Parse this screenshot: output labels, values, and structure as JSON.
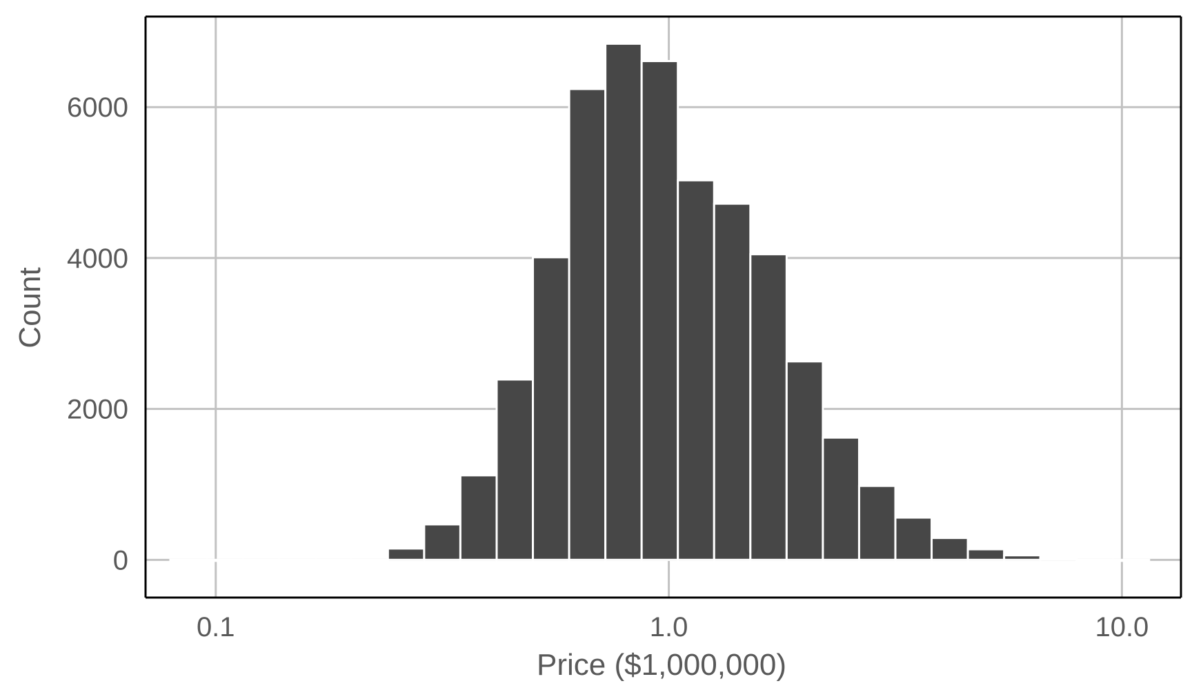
{
  "chart_data": {
    "type": "bar",
    "xlabel": "Price ($1,000,000)",
    "ylabel": "Count",
    "xscale": "log10",
    "xlim": [
      0.07,
      13.5
    ],
    "ylim": [
      -500,
      7200
    ],
    "xticks": [
      0.1,
      1.0,
      10.0
    ],
    "xtick_labels": [
      "0.1",
      "1.0",
      "10.0"
    ],
    "yticks": [
      0,
      2000,
      4000,
      6000
    ],
    "ytick_labels": [
      "0",
      "2000",
      "4000",
      "6000"
    ],
    "grid": true,
    "legend": "none",
    "bar_color": "#474747",
    "bar_edge_color": "#ffffff",
    "bins": [
      {
        "x0": 0.0794,
        "x1": 0.0955,
        "count": 0
      },
      {
        "x0": 0.0955,
        "x1": 0.1148,
        "count": 0
      },
      {
        "x0": 0.1148,
        "x1": 0.138,
        "count": 0
      },
      {
        "x0": 0.138,
        "x1": 0.166,
        "count": 0
      },
      {
        "x0": 0.166,
        "x1": 0.1995,
        "count": 0
      },
      {
        "x0": 0.1995,
        "x1": 0.2399,
        "count": 0
      },
      {
        "x0": 0.2399,
        "x1": 0.2884,
        "count": 150
      },
      {
        "x0": 0.2884,
        "x1": 0.3467,
        "count": 470
      },
      {
        "x0": 0.3467,
        "x1": 0.4169,
        "count": 1120
      },
      {
        "x0": 0.4169,
        "x1": 0.5012,
        "count": 2390
      },
      {
        "x0": 0.5012,
        "x1": 0.6026,
        "count": 4010
      },
      {
        "x0": 0.6026,
        "x1": 0.7244,
        "count": 6240
      },
      {
        "x0": 0.7244,
        "x1": 0.871,
        "count": 6840
      },
      {
        "x0": 0.871,
        "x1": 1.0471,
        "count": 6610
      },
      {
        "x0": 1.0471,
        "x1": 1.2589,
        "count": 5030
      },
      {
        "x0": 1.2589,
        "x1": 1.5136,
        "count": 4720
      },
      {
        "x0": 1.5136,
        "x1": 1.8197,
        "count": 4050
      },
      {
        "x0": 1.8197,
        "x1": 2.1878,
        "count": 2630
      },
      {
        "x0": 2.1878,
        "x1": 2.6303,
        "count": 1620
      },
      {
        "x0": 2.6303,
        "x1": 3.1623,
        "count": 980
      },
      {
        "x0": 3.1623,
        "x1": 3.8019,
        "count": 560
      },
      {
        "x0": 3.8019,
        "x1": 4.5709,
        "count": 290
      },
      {
        "x0": 4.5709,
        "x1": 5.4954,
        "count": 140
      },
      {
        "x0": 5.4954,
        "x1": 6.6069,
        "count": 60
      },
      {
        "x0": 6.6069,
        "x1": 7.9433,
        "count": 25
      },
      {
        "x0": 7.9433,
        "x1": 9.5499,
        "count": 0
      },
      {
        "x0": 9.5499,
        "x1": 11.4815,
        "count": 0
      }
    ]
  }
}
